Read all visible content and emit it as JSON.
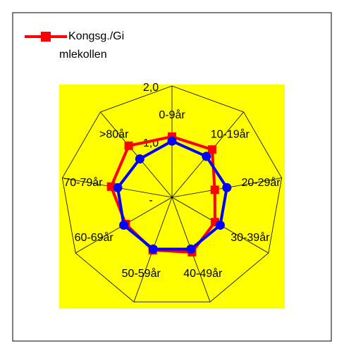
{
  "chart_data": {
    "type": "radar",
    "categories": [
      "0-9år",
      "10-19år",
      "20-29år",
      "30-39år",
      "40-49år",
      "50-59år",
      "60-69år",
      "70-79år",
      ">80år"
    ],
    "series": [
      {
        "name": "Kongsg./Gi mlekollen",
        "color": "#ff0000",
        "values": [
          1.09,
          1.12,
          0.78,
          0.89,
          1.05,
          1.01,
          0.96,
          1.11,
          1.21
        ]
      },
      {
        "color": "#0000ff",
        "values": [
          1.01,
          0.96,
          1.0,
          1.0,
          0.99,
          0.99,
          1.0,
          0.99,
          0.9
        ]
      }
    ],
    "ylim": [
      0,
      2
    ],
    "yticks": [
      {
        "value": 0,
        "label": "-"
      },
      {
        "value": 1,
        "label": "1,0"
      },
      {
        "value": 2,
        "label": "2,0"
      }
    ],
    "legend": "top-left",
    "background": "#ffff00"
  }
}
